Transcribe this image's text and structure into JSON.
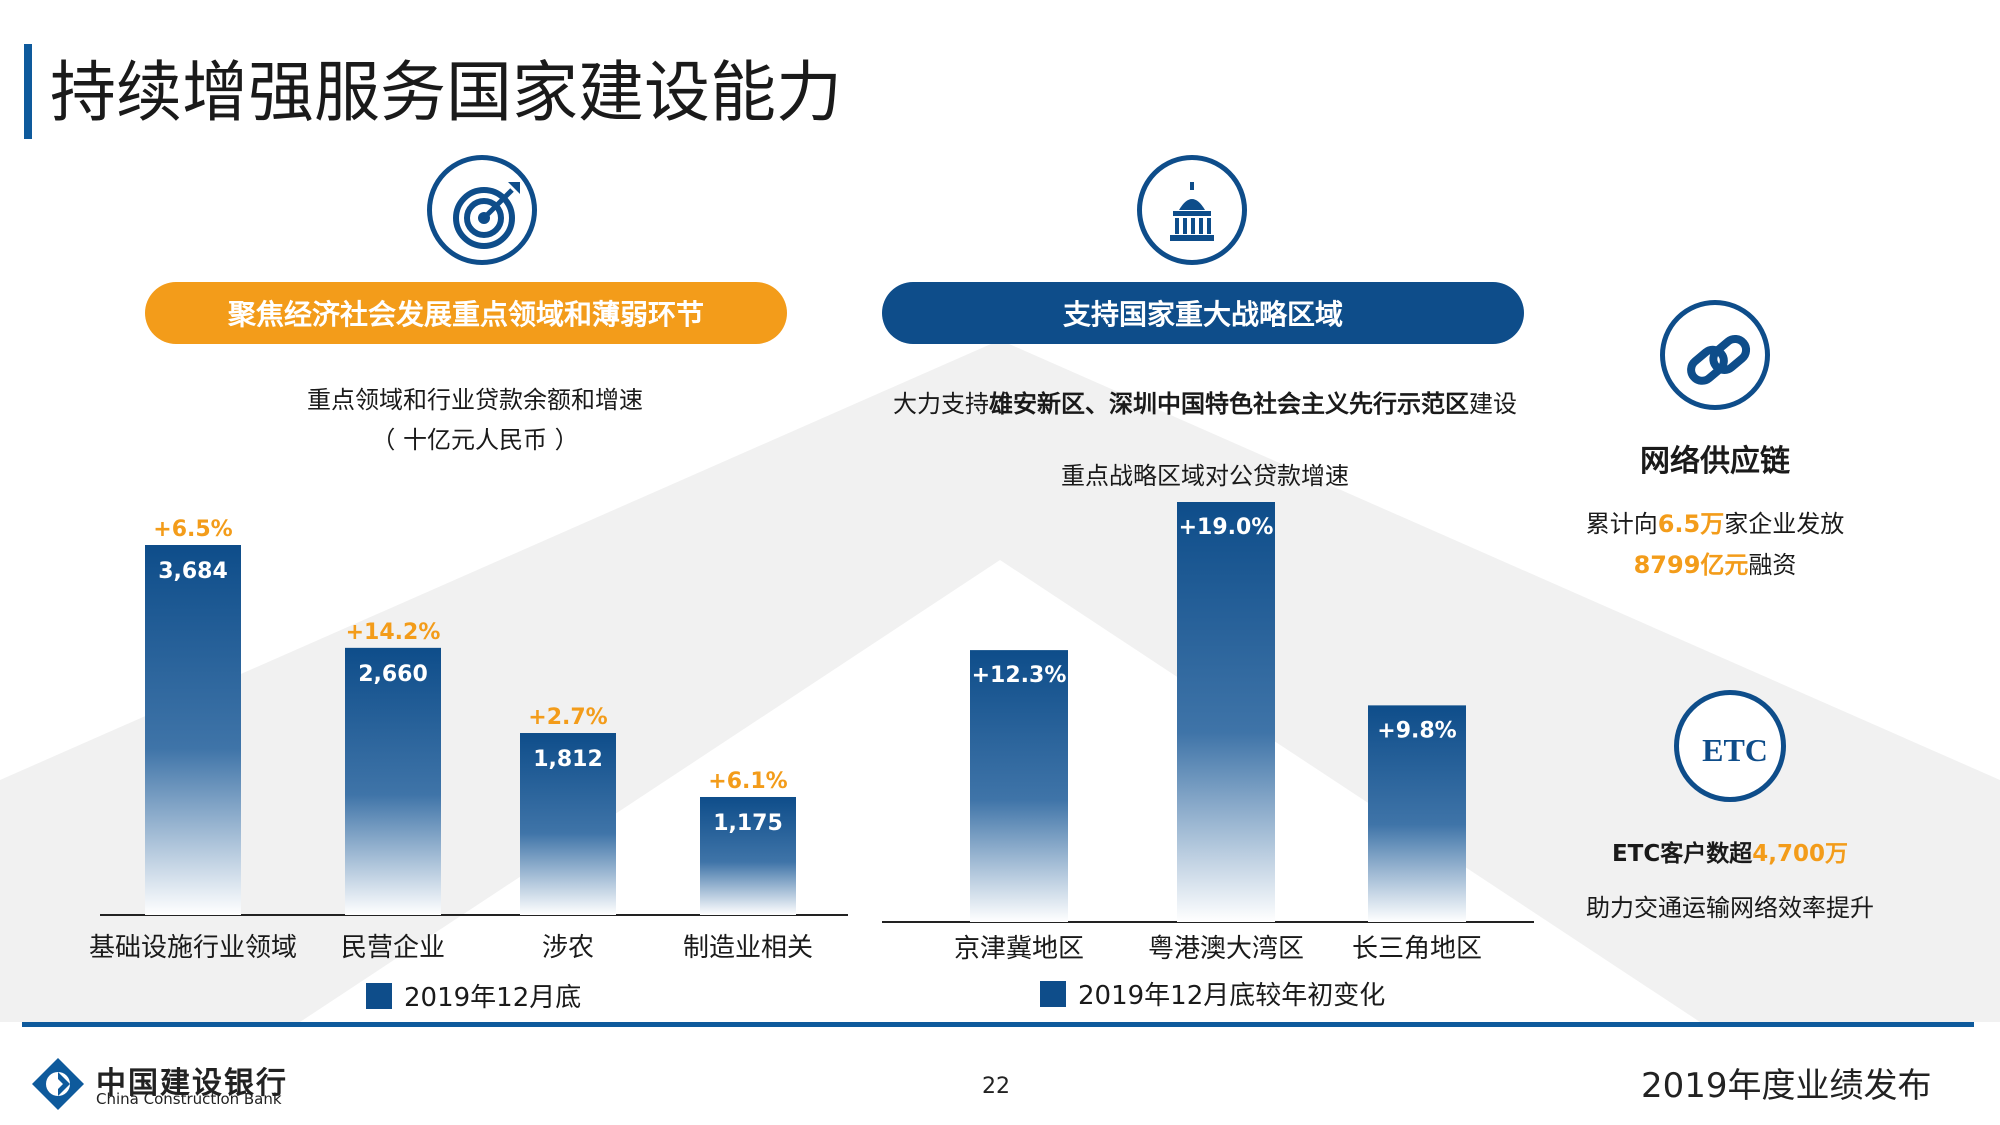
{
  "page": {
    "title": "持续增强服务国家建设能力",
    "page_number": "22",
    "footer_right": "2019年度业绩发布",
    "logo": {
      "cn": "中国建设银行",
      "en": "China Construction Bank"
    }
  },
  "left_panel": {
    "icon": "target-icon",
    "pill": "聚焦经济社会发展重点领域和薄弱环节",
    "subtitle_line1": "重点领域和行业贷款余额和增速",
    "subtitle_line2": "（ 十亿元人民币 ）",
    "legend": "2019年12月底"
  },
  "middle_panel": {
    "icon": "capitol-building-icon",
    "pill": "支持国家重大战略区域",
    "text_prefix": "大力支持",
    "text_bold": "雄安新区、深圳中国特色社会主义先行示范区",
    "text_suffix": "建设",
    "chart_title": "重点战略区域对公贷款增速",
    "legend": "2019年12月底较年初变化"
  },
  "right_panel": {
    "supply_chain": {
      "icon": "chain-link-icon",
      "heading": "网络供应链",
      "line1_a": "累计向",
      "line1_hl": "6.5万",
      "line1_b": "家企业发放",
      "line2_hl": "8799亿元",
      "line2_b": "融资"
    },
    "etc": {
      "icon": "etc-icon",
      "icon_text": "ETC",
      "line1_a": "ETC客户数超",
      "line1_hl": "4,700万",
      "line2": "助力交通运输网络效率提升"
    }
  },
  "colors": {
    "accent_blue": "#0e4d8a",
    "accent_orange": "#f39c1a"
  },
  "chart_data": [
    {
      "type": "bar",
      "categories": [
        "基础设施行业领域",
        "民营企业",
        "涉农",
        "制造业相关"
      ],
      "series": [
        {
          "name": "2019年12月底",
          "values": [
            3684,
            2660,
            1812,
            1175
          ]
        }
      ],
      "value_labels": [
        "3,684",
        "2,660",
        "1,812",
        "1,175"
      ],
      "growth_labels": [
        "+6.5%",
        "+14.2%",
        "+2.7%",
        "+6.1%"
      ]
    },
    {
      "type": "bar",
      "categories": [
        "京津冀地区",
        "粤港澳大湾区",
        "长三角地区"
      ],
      "series": [
        {
          "name": "2019年12月底较年初变化",
          "values": [
            12.3,
            19.0,
            9.8
          ]
        }
      ],
      "value_labels": [
        "+12.3%",
        "+19.0%",
        "+9.8%"
      ]
    }
  ]
}
